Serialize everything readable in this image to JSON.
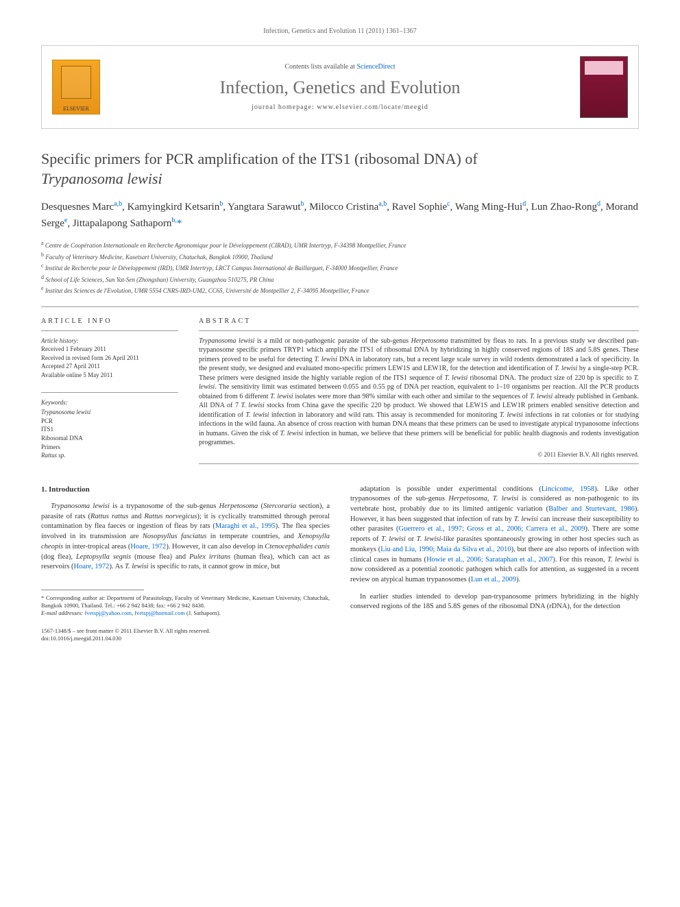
{
  "header": {
    "citation": "Infection, Genetics and Evolution 11 (2011) 1361–1367"
  },
  "banner": {
    "elsevier_label": "ELSEVIER",
    "contents_prefix": "Contents lists available at ",
    "contents_link": "ScienceDirect",
    "journal_name": "Infection, Genetics and Evolution",
    "homepage_prefix": "journal homepage: ",
    "homepage_url": "www.elsevier.com/locate/meegid"
  },
  "title": {
    "line1": "Specific primers for PCR amplification of the ITS1 (ribosomal DNA) of",
    "line2_italic": "Trypanosoma lewisi"
  },
  "authors_html": "Desquesnes Marc<sup>a,b</sup>, Kamyingkird Ketsarin<sup>b</sup>, Yangtara Sarawut<sup>b</sup>, Milocco Cristina<sup>a,b</sup>, Ravel Sophie<sup>c</sup>, Wang Ming-Hui<sup>d</sup>, Lun Zhao-Rong<sup>d</sup>, Morand Serge<sup>e</sup>, Jittapalapong Sathaporn<sup>b,</sup><span class='star'>*</span>",
  "affiliations": [
    {
      "key": "a",
      "text": "Centre de Coopération Internationale en Recherche Agronomique pour le Développement (CIRAD), UMR Intertryp, F-34398 Montpellier, France"
    },
    {
      "key": "b",
      "text": "Faculty of Veterinary Medicine, Kasetsart University, Chatuchak, Bangkok 10900, Thailand"
    },
    {
      "key": "c",
      "text": "Institut de Recherche pour le Développement (IRD), UMR Intertryp, LRCT Campus International de Baillarguet, F-34000 Montpellier, France"
    },
    {
      "key": "d",
      "text": "School of Life Sciences, Sun Yat-Sen (Zhongshan) University, Guangzhou 510275, PR China"
    },
    {
      "key": "e",
      "text": "Institut des Sciences de l'Evolution, UMR 5554 CNRS-IRD-UM2, CC65, Université de Montpellier 2, F-34095 Montpellier, France"
    }
  ],
  "article_info": {
    "heading": "ARTICLE INFO",
    "history_label": "Article history:",
    "history": [
      "Received 1 February 2011",
      "Received in revised form 26 April 2011",
      "Accepted 27 April 2011",
      "Available online 5 May 2011"
    ],
    "keywords_label": "Keywords:",
    "keywords": [
      {
        "text": "Trypanosoma lewisi",
        "italic": true
      },
      {
        "text": "PCR",
        "italic": false
      },
      {
        "text": "ITS1",
        "italic": false
      },
      {
        "text": "Ribosomal DNA",
        "italic": false
      },
      {
        "text": "Primers",
        "italic": false
      },
      {
        "text": "Rattus sp.",
        "italic": true
      }
    ]
  },
  "abstract": {
    "heading": "ABSTRACT",
    "text_html": "<span class='italic'>Trypanosoma lewisi</span> is a mild or non-pathogenic parasite of the sub-genus <span class='italic'>Herpetosoma</span> transmitted by fleas to rats. In a previous study we described pan-trypanosome specific primers TRYP1 which amplify the ITS1 of ribosomal DNA by hybridizing in highly conserved regions of 18S and 5.8S genes. These primers proved to be useful for detecting <span class='italic'>T. lewisi</span> DNA in laboratory rats, but a recent large scale survey in wild rodents demonstrated a lack of specificity. In the present study, we designed and evaluated mono-specific primers LEW1S and LEW1R, for the detection and identification of <span class='italic'>T. lewisi</span> by a single-step PCR. These primers were designed inside the highly variable region of the ITS1 sequence of <span class='italic'>T. lewisi</span> ribosomal DNA. The product size of 220 bp is specific to <span class='italic'>T. lewisi</span>. The sensitivity limit was estimated between 0.055 and 0.55 pg of DNA per reaction, equivalent to 1–10 organisms per reaction. All the PCR products obtained from 6 different <span class='italic'>T. lewisi</span> isolates were more than 98% similar with each other and similar to the sequences of <span class='italic'>T. lewisi</span> already published in Genbank. All DNA of 7 <span class='italic'>T. lewisi</span> stocks from China gave the specific 220 bp product. We showed that LEW1S and LEW1R primers enabled sensitive detection and identification of <span class='italic'>T. lewisi</span> infection in laboratory and wild rats. This assay is recommended for monitoring <span class='italic'>T. lewisi</span> infections in rat colonies or for studying infections in the wild fauna. An absence of cross reaction with human DNA means that these primers can be used to investigate atypical trypanosome infections in humans. Given the risk of <span class='italic'>T. lewisi</span> infection in human, we believe that these primers will be beneficial for public health diagnosis and rodents investigation programmes.",
    "copyright": "© 2011 Elsevier B.V. All rights reserved."
  },
  "body": {
    "section_heading": "1. Introduction",
    "col1_html": "<span class='italic'>Trypanosoma lewisi</span> is a trypanosome of the sub-genus <span class='italic'>Herpetosoma</span> (<span class='italic'>Stercoraria</span> section), a parasite of rats (<span class='italic'>Rattus rattus</span> and <span class='italic'>Rattus norvegicus</span>); it is cyclically transmitted through peroral contamination by flea faeces or ingestion of fleas by rats (<span class='cite'>Maraghi et al., 1995</span>). The flea species involved in its transmission are <span class='italic'>Nosopsyllus fasciatus</span> in temperate countries, and <span class='italic'>Xenopsylla cheopis</span> in inter-tropical areas (<span class='cite'>Hoare, 1972</span>). However, it can also develop in <span class='italic'>Ctenocephalides canis</span> (dog flea), <span class='italic'>Leptopsylla segnis</span> (mouse flea) and <span class='italic'>Pulex irritans</span> (human flea), which can act as reservoirs (<span class='cite'>Hoare, 1972</span>). As <span class='italic'>T. lewisi</span> is specific to rats, it cannot grow in mice, but",
    "col2_p1_html": "adaptation is possible under experimental conditions (<span class='cite'>Lincicome, 1958</span>). Like other trypanosomes of the sub-genus <span class='italic'>Herpetosoma</span>, <span class='italic'>T. lewisi</span> is considered as non-pathogenic to its vertebrate host, probably due to its limited antigenic variation (<span class='cite'>Balber and Sturtevant, 1986</span>). However, it has been suggested that infection of rats by <span class='italic'>T. lewisi</span> can increase their susceptibility to other parasites (<span class='cite'>Guerrero et al., 1997; Gross et al., 2006; Carrera et al., 2009</span>). There are some reports of <span class='italic'>T. lewisi</span> or <span class='italic'>T. lewisi</span>-like parasites spontaneously growing in other host species such as monkeys (<span class='cite'>Liu and Liu, 1990; Maia da Silva et al., 2010</span>), but there are also reports of infection with clinical cases in humans (<span class='cite'>Howie et al., 2006; Sarataphan et al., 2007</span>). For this reason, <span class='italic'>T. lewisi</span> is now considered as a potential zoonotic pathogen which calls for attention, as suggested in a recent review on atypical human trypanosomes (<span class='cite'>Lun et al., 2009</span>).",
    "col2_p2_html": "In earlier studies intended to develop pan-trypanosome primers hybridizing in the highly conserved regions of the 18S and 5.8S genes of the ribosomal DNA (rDNA), for the detection"
  },
  "footnotes": {
    "corresponding": "* Corresponding author at: Department of Parasitology, Faculty of Veterinary Medicine, Kasetsart University, Chatuchak, Bangkok 10900, Thailand. Tel.: +66 2 942 8438; fax: +66 2 942 8438.",
    "email_label": "E-mail addresses:",
    "emails_html": "<span class='cite'>fvetspj@yahoo.com</span>, <span class='cite'>fvetspj@hotmail.com</span> (J. Sathaporn)."
  },
  "bottom": {
    "line1": "1567-1348/$ – see front matter © 2011 Elsevier B.V. All rights reserved.",
    "line2": "doi:10.1016/j.meegid.2011.04.030"
  },
  "colors": {
    "link": "#0066cc",
    "text": "#333333",
    "muted": "#666666",
    "rule": "#999999"
  }
}
